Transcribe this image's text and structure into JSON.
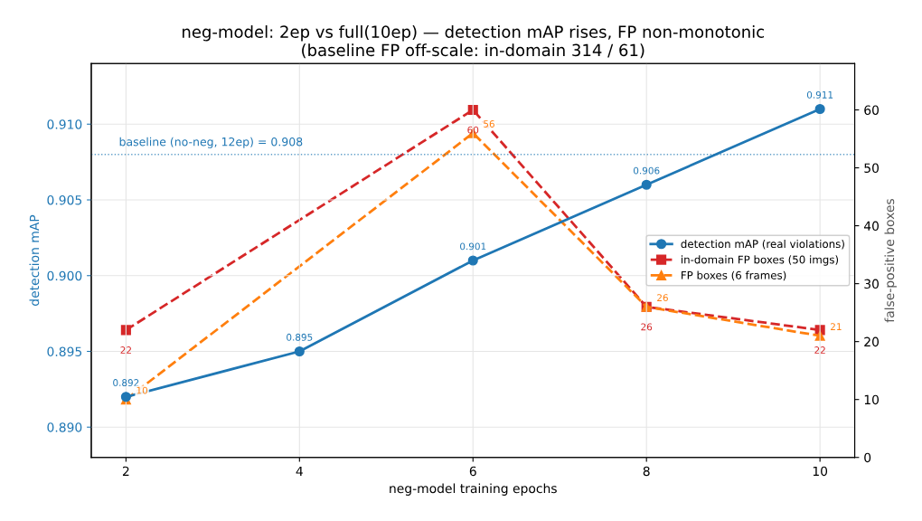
{
  "chart_data": {
    "type": "line",
    "title": "neg-model: 2ep vs full(10ep) — detection mAP rises, FP non-monotonic\n(baseline FP off-scale: in-domain 314 / 61)",
    "xlabel": "neg-model training epochs",
    "ylabel": "detection mAP",
    "y2label": "false-positive boxes",
    "x": [
      2,
      4,
      6,
      8,
      10
    ],
    "series": [
      {
        "name": "detection mAP (real violations)",
        "color": "#1f77b4",
        "values": [
          0.892,
          0.895,
          0.901,
          0.906,
          0.911
        ],
        "marker": "circle",
        "line_style": "solid"
      },
      {
        "name": "in-domain FP boxes (50 imgs)",
        "color": "#d62728",
        "x": [
          2,
          6,
          8,
          10
        ],
        "values": [
          22,
          60,
          26,
          22
        ],
        "axis": "y2",
        "marker": "square",
        "line_style": "dashed"
      },
      {
        "name": "FP boxes (6 frames)",
        "color": "#ff7f0e",
        "x": [
          2,
          6,
          8,
          10
        ],
        "values": [
          10,
          56,
          26,
          21
        ],
        "axis": "y2",
        "marker": "triangle",
        "line_style": "dashed"
      }
    ],
    "xlim": [
      1.6,
      10.4
    ],
    "xticks": [
      2,
      4,
      6,
      8,
      10
    ],
    "ylim": [
      0.888,
      0.914
    ],
    "yticks": [
      {
        "value": 0.89,
        "label": "0.890"
      },
      {
        "value": 0.895,
        "label": "0.895"
      },
      {
        "value": 0.9,
        "label": "0.900"
      },
      {
        "value": 0.905,
        "label": "0.905"
      },
      {
        "value": 0.91,
        "label": "0.910"
      }
    ],
    "y2lim": [
      0,
      68
    ],
    "y2ticks": [
      0,
      10,
      20,
      30,
      40,
      50,
      60
    ],
    "ref_lines": [
      {
        "axis": "y",
        "value": 0.908,
        "label": "baseline (no-neg, 12ep) = 0.908",
        "color": "#1f77b4",
        "line_style": "dotted"
      }
    ],
    "data_labels": true,
    "grid": true,
    "legend": "center right"
  }
}
